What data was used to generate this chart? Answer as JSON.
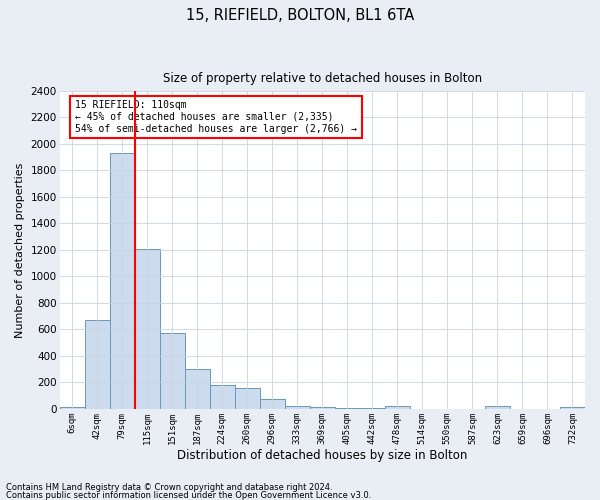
{
  "title1": "15, RIEFIELD, BOLTON, BL1 6TA",
  "title2": "Size of property relative to detached houses in Bolton",
  "xlabel": "Distribution of detached houses by size in Bolton",
  "ylabel": "Number of detached properties",
  "categories": [
    "6sqm",
    "42sqm",
    "79sqm",
    "115sqm",
    "151sqm",
    "187sqm",
    "224sqm",
    "260sqm",
    "296sqm",
    "333sqm",
    "369sqm",
    "405sqm",
    "442sqm",
    "478sqm",
    "514sqm",
    "550sqm",
    "587sqm",
    "623sqm",
    "659sqm",
    "696sqm",
    "732sqm"
  ],
  "values": [
    15,
    670,
    1930,
    1210,
    570,
    300,
    180,
    160,
    75,
    25,
    15,
    10,
    5,
    25,
    3,
    2,
    1,
    20,
    1,
    1,
    15
  ],
  "bar_color": "#ccdcee",
  "bar_edge_color": "#6699bb",
  "ylim": [
    0,
    2400
  ],
  "yticks": [
    0,
    200,
    400,
    600,
    800,
    1000,
    1200,
    1400,
    1600,
    1800,
    2000,
    2200,
    2400
  ],
  "red_line_x": 2.5,
  "annotation_title": "15 RIEFIELD: 110sqm",
  "annotation_line1": "← 45% of detached houses are smaller (2,335)",
  "annotation_line2": "54% of semi-detached houses are larger (2,766) →",
  "footnote1": "Contains HM Land Registry data © Crown copyright and database right 2024.",
  "footnote2": "Contains public sector information licensed under the Open Government Licence v3.0.",
  "bg_color": "#e8eef4",
  "plot_bg_color": "#ffffff",
  "grid_color": "#c8d4e0"
}
